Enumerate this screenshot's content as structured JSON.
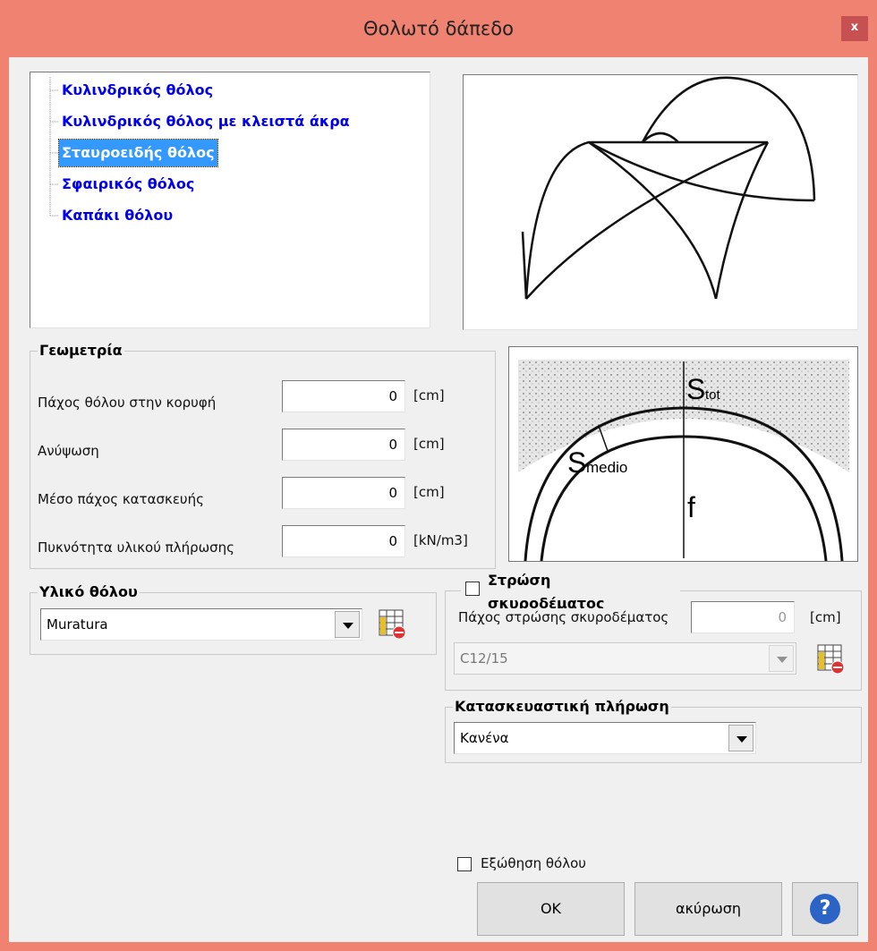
{
  "window": {
    "title": "Θολωτό δάπεδο",
    "close": "x"
  },
  "tree": {
    "items": [
      "Κυλινδρικός θόλος",
      "Κυλινδρικός θόλος με κλειστά άκρα",
      "Σταυροειδής θόλος",
      "Σφαιρικός θόλος",
      "Καπάκι θόλου"
    ],
    "selected": 2
  },
  "geometry": {
    "title": "Γεωμετρία",
    "fields": [
      {
        "label": "Πάχος θόλου στην κορυφή",
        "value": "0",
        "unit": "[cm]"
      },
      {
        "label": "Ανύψωση",
        "value": "0",
        "unit": "[cm]"
      },
      {
        "label": "Μέσο πάχος κατασκευής",
        "value": "0",
        "unit": "[cm]"
      },
      {
        "label": "Πυκνότητα υλικού πλήρωσης",
        "value": "0",
        "unit": "[kN/m3]"
      }
    ]
  },
  "diagram": {
    "s_tot": "S",
    "s_tot_sub": "tot",
    "s_medio": "S",
    "s_medio_sub": "medio",
    "f": "f"
  },
  "material": {
    "title": "Υλικό θόλου",
    "value": "Muratura"
  },
  "concrete": {
    "title": "Στρώση σκυροδέματος",
    "field_label": "Πάχος στρώσης σκυροδέματος",
    "value": "0",
    "unit": "[cm]",
    "grade": "C12/15"
  },
  "fill": {
    "title": "Κατασκευαστική πλήρωση",
    "value": "Κανένα"
  },
  "push": {
    "label": "Εξώθηση θόλου"
  },
  "buttons": {
    "ok": "OK",
    "cancel": "ακύρωση",
    "help": "?"
  }
}
